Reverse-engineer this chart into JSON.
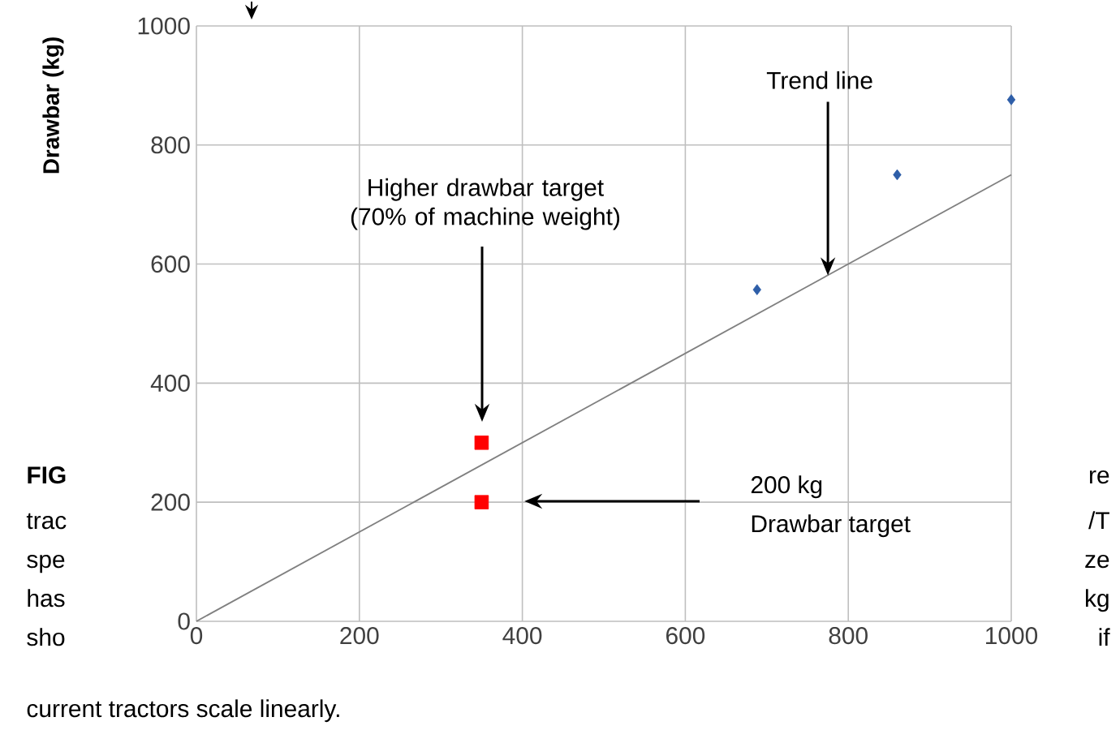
{
  "chart_data": {
    "type": "scatter",
    "ylabel": "Drawbar (kg)",
    "xlim": [
      0,
      1000
    ],
    "ylim": [
      0,
      1000
    ],
    "xticks": [
      0,
      200,
      400,
      600,
      800,
      1000
    ],
    "yticks": [
      0,
      200,
      400,
      600,
      800,
      1000
    ],
    "grid": true,
    "series": [
      {
        "type": "scatter",
        "color": "#2e5ea8",
        "marker": "diamond",
        "x": [
          688,
          860,
          1000
        ],
        "values": [
          557,
          750,
          876
        ]
      },
      {
        "type": "scatter",
        "color": "#ff0000",
        "marker": "square",
        "x": [
          350,
          350
        ],
        "values": [
          300,
          200
        ]
      },
      {
        "type": "line",
        "color": "#808080",
        "marker": "none",
        "x": [
          0,
          1000
        ],
        "values": [
          0,
          750
        ]
      }
    ],
    "annotations": [
      {
        "text": "Trend line",
        "x": 775,
        "y": 581
      },
      "Higher drawbar target (70% of machine weight)",
      "200 kg",
      "Drawbar target",
      "FIG",
      "trac",
      "spe",
      "has",
      "sho",
      "current tractors scale linearly.",
      "re",
      "/T",
      "ze",
      "kg",
      "if"
    ]
  }
}
